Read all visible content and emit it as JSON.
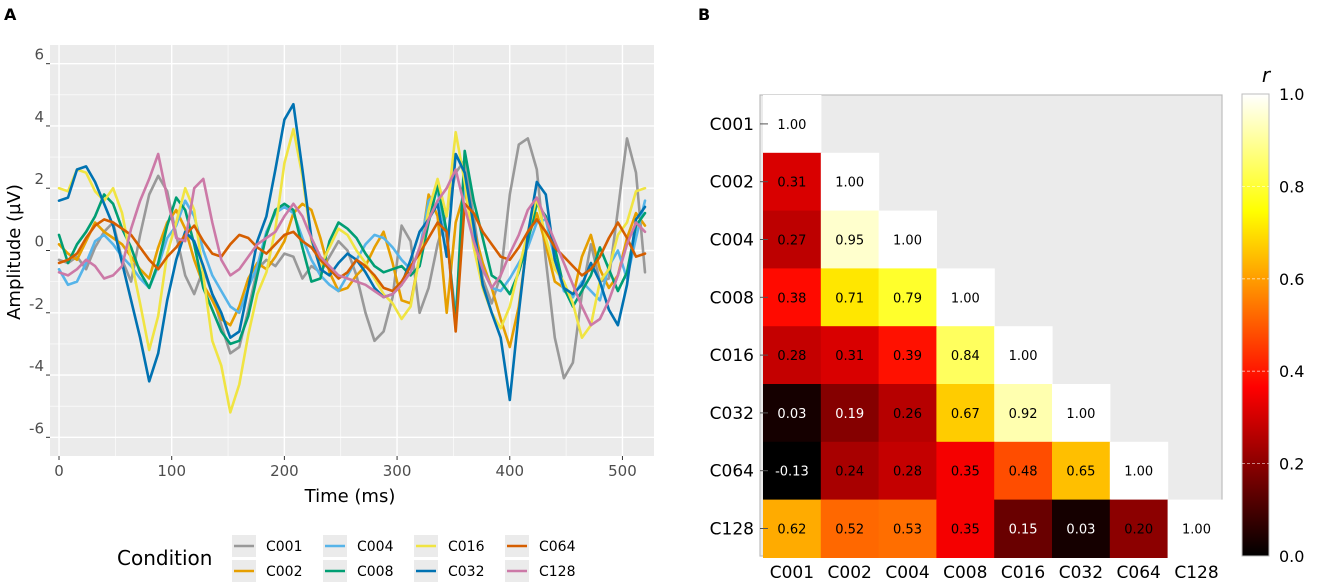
{
  "panels": {
    "a": "A",
    "b": "B"
  },
  "chart_data": [
    {
      "type": "line",
      "panel": "A",
      "title": "",
      "xlabel": "Time (ms)",
      "ylabel": "Amplitude (µV)",
      "xlim": [
        -8,
        528
      ],
      "ylim": [
        -6.6,
        6.6
      ],
      "xticks": [
        0,
        100,
        200,
        300,
        400,
        500
      ],
      "yticks": [
        -6,
        -4,
        -2,
        0,
        2,
        4,
        6
      ],
      "x": [
        0,
        8,
        16,
        24,
        32,
        40,
        48,
        56,
        64,
        72,
        80,
        88,
        96,
        104,
        112,
        120,
        128,
        136,
        144,
        152,
        160,
        168,
        176,
        184,
        192,
        200,
        208,
        216,
        224,
        232,
        240,
        248,
        256,
        264,
        272,
        280,
        288,
        296,
        304,
        312,
        320,
        328,
        336,
        344,
        352,
        360,
        368,
        376,
        384,
        392,
        400,
        408,
        416,
        424,
        432,
        440,
        448,
        456,
        464,
        472,
        480,
        488,
        496,
        504,
        512,
        520
      ],
      "legend_title": "Condition",
      "series": [
        {
          "name": "C001",
          "color": "#999999",
          "values": [
            -0.3,
            -0.4,
            -0.2,
            -0.6,
            0.1,
            0.6,
            0.9,
            -0.3,
            -1.0,
            0.5,
            1.8,
            2.4,
            1.9,
            0.5,
            -0.8,
            -1.4,
            -0.6,
            -1.4,
            -2.4,
            -3.3,
            -3.1,
            -1.9,
            -0.6,
            -0.3,
            -0.5,
            -0.1,
            -0.2,
            -0.9,
            -0.5,
            -0.7,
            -0.2,
            0.3,
            0.0,
            -0.8,
            -2.0,
            -2.9,
            -2.6,
            -1.5,
            0.8,
            0.3,
            -2.0,
            -1.2,
            0.2,
            1.2,
            2.5,
            2.9,
            1.1,
            -0.9,
            -1.7,
            -0.8,
            1.8,
            3.4,
            3.6,
            2.6,
            -0.3,
            -2.8,
            -4.1,
            -3.6,
            -1.4,
            0.2,
            -1.0,
            -0.9,
            1.3,
            3.6,
            2.5,
            -0.7
          ]
        },
        {
          "name": "C002",
          "color": "#E69F00",
          "values": [
            0.2,
            -0.1,
            -0.3,
            0.3,
            0.9,
            0.6,
            0.4,
            0.2,
            -0.2,
            -0.6,
            -0.9,
            0.1,
            0.9,
            1.3,
            0.7,
            -0.3,
            -1.1,
            -1.6,
            -2.2,
            -2.4,
            -1.8,
            -0.9,
            -0.4,
            -0.6,
            -0.2,
            0.3,
            1.2,
            1.5,
            1.3,
            0.4,
            -0.7,
            -1.3,
            -1.2,
            -0.8,
            -0.5,
            0.1,
            0.6,
            -0.4,
            -1.6,
            -1.7,
            -0.2,
            1.8,
            1.1,
            -2.0,
            0.9,
            1.9,
            0.7,
            -0.4,
            -1.2,
            -2.2,
            -3.1,
            -1.8,
            0.4,
            1.2,
            0.2,
            -1.0,
            -1.2,
            -1.5,
            -0.2,
            0.5,
            -0.6,
            -1.2,
            -0.8,
            0.4,
            1.2,
            0.8
          ]
        },
        {
          "name": "C004",
          "color": "#56B4E9",
          "values": [
            -0.6,
            -1.1,
            -1.0,
            -0.4,
            0.3,
            0.5,
            0.2,
            -0.2,
            -0.5,
            -0.9,
            -1.2,
            -0.5,
            0.4,
            0.8,
            1.6,
            1.1,
            0.0,
            -0.8,
            -1.3,
            -1.8,
            -2.0,
            -1.2,
            -0.5,
            0.6,
            1.2,
            1.4,
            1.2,
            0.4,
            -0.3,
            -0.8,
            -1.1,
            -1.3,
            -0.8,
            -0.3,
            0.2,
            0.5,
            0.4,
            0.1,
            -0.3,
            -0.6,
            0.0,
            1.6,
            1.9,
            0.4,
            -2.1,
            2.3,
            0.4,
            -0.6,
            -1.2,
            -1.3,
            -0.9,
            -0.4,
            0.1,
            0.9,
            1.0,
            -0.3,
            -1.3,
            -1.5,
            -1.0,
            -1.3,
            -1.6,
            -0.5,
            0.0,
            -0.9,
            0.4,
            1.6
          ]
        },
        {
          "name": "C008",
          "color": "#009E73",
          "values": [
            0.5,
            -0.4,
            0.2,
            0.6,
            1.1,
            1.8,
            1.5,
            0.7,
            0.1,
            -0.7,
            -1.2,
            -0.4,
            0.8,
            1.7,
            1.3,
            0.2,
            -1.2,
            -1.9,
            -2.6,
            -3.0,
            -2.9,
            -2.1,
            -0.8,
            0.5,
            1.3,
            1.5,
            1.3,
            0.1,
            -1.0,
            -0.9,
            0.3,
            0.9,
            0.7,
            0.4,
            -0.1,
            -0.5,
            -0.7,
            -0.6,
            -0.5,
            -0.8,
            -0.5,
            0.9,
            2.1,
            0.6,
            -2.4,
            3.2,
            1.6,
            0.4,
            -0.8,
            -1.0,
            -1.4,
            -0.7,
            0.3,
            1.5,
            1.1,
            0.1,
            -1.2,
            -1.8,
            -1.3,
            -0.8,
            0.1,
            -0.6,
            -1.3,
            -0.7,
            0.8,
            1.2
          ]
        },
        {
          "name": "C016",
          "color": "#F0E442",
          "values": [
            2.0,
            1.9,
            2.6,
            2.5,
            1.9,
            1.6,
            2.0,
            1.2,
            -0.3,
            -1.7,
            -3.2,
            -2.1,
            -0.1,
            0.9,
            2.0,
            1.3,
            -0.8,
            -2.9,
            -3.7,
            -5.2,
            -4.3,
            -2.7,
            -1.4,
            -0.7,
            0.7,
            2.8,
            3.9,
            2.4,
            0.3,
            -0.5,
            0.1,
            0.7,
            0.5,
            0.0,
            -0.4,
            -0.9,
            -1.4,
            -1.7,
            -2.2,
            -1.8,
            -0.2,
            1.3,
            2.3,
            1.1,
            3.8,
            2.2,
            0.1,
            -1.2,
            -2.0,
            -2.5,
            -1.8,
            -0.6,
            0.6,
            1.7,
            0.4,
            -0.6,
            -1.0,
            -1.7,
            -2.8,
            -2.4,
            -1.0,
            -0.6,
            0.5,
            0.9,
            1.9,
            2.0
          ]
        },
        {
          "name": "C032",
          "color": "#0072B2",
          "values": [
            1.6,
            1.7,
            2.6,
            2.7,
            2.2,
            1.5,
            0.8,
            -0.4,
            -1.6,
            -2.8,
            -4.2,
            -3.3,
            -1.6,
            -0.3,
            0.6,
            0.3,
            -0.5,
            -1.4,
            -2.0,
            -2.8,
            -2.6,
            -1.2,
            0.3,
            1.1,
            2.6,
            4.2,
            4.7,
            2.6,
            0.4,
            -0.6,
            -0.8,
            -0.4,
            -0.1,
            -0.3,
            -0.7,
            -1.2,
            -1.5,
            -1.4,
            -1.1,
            -0.3,
            0.6,
            1.0,
            1.5,
            -0.2,
            3.1,
            2.5,
            0.8,
            -1.1,
            -2.0,
            -2.8,
            -4.8,
            -2.0,
            0.5,
            2.2,
            1.8,
            -0.3,
            -1.2,
            -1.4,
            -1.1,
            -0.4,
            -1.0,
            -1.9,
            -2.4,
            -1.1,
            1.0,
            1.4
          ]
        },
        {
          "name": "C064",
          "color": "#D55E00",
          "values": [
            -0.4,
            -0.3,
            -0.1,
            0.4,
            0.8,
            1.0,
            0.9,
            0.7,
            0.5,
            0.1,
            -0.3,
            -0.6,
            -0.2,
            0.1,
            0.5,
            0.8,
            0.3,
            -0.1,
            -0.2,
            0.2,
            0.5,
            0.4,
            0.1,
            -0.1,
            0.2,
            0.5,
            0.6,
            0.3,
            0.1,
            -0.3,
            -0.6,
            -0.9,
            -0.7,
            -0.3,
            -0.5,
            -0.8,
            -1.2,
            -1.3,
            -1.0,
            -0.5,
            -0.1,
            0.4,
            0.9,
            0.6,
            -2.6,
            1.5,
            1.2,
            0.6,
            0.2,
            -0.2,
            -0.3,
            0.1,
            0.6,
            1.0,
            0.6,
            0.1,
            -0.2,
            -0.5,
            -0.8,
            -0.6,
            -0.2,
            0.4,
            0.9,
            0.4,
            -0.2,
            -0.1
          ]
        },
        {
          "name": "C128",
          "color": "#CC79A7",
          "values": [
            -0.7,
            -0.8,
            -0.6,
            -0.3,
            -0.5,
            -0.9,
            -0.8,
            -0.5,
            0.7,
            1.6,
            2.3,
            3.1,
            1.7,
            0.4,
            0.3,
            2.0,
            2.3,
            0.9,
            -0.3,
            -0.8,
            -0.6,
            -0.2,
            0.2,
            0.4,
            0.6,
            1.1,
            1.5,
            1.1,
            0.4,
            -0.2,
            -0.5,
            -0.8,
            -0.9,
            -1.0,
            -1.1,
            -1.3,
            -1.5,
            -1.4,
            -1.1,
            -0.7,
            0.1,
            1.0,
            1.6,
            2.0,
            2.6,
            1.4,
            0.3,
            -0.6,
            -1.2,
            -0.8,
            -0.1,
            0.5,
            1.3,
            1.7,
            1.0,
            0.3,
            -0.4,
            -1.1,
            -1.8,
            -2.4,
            -2.2,
            -1.6,
            -0.8,
            0.2,
            0.9,
            0.6
          ]
        }
      ]
    },
    {
      "type": "heatmap",
      "panel": "B",
      "title": "",
      "labels": [
        "C001",
        "C002",
        "C004",
        "C008",
        "C016",
        "C032",
        "C064",
        "C128"
      ],
      "matrix": [
        [
          1.0
        ],
        [
          0.31,
          1.0
        ],
        [
          0.27,
          0.95,
          1.0
        ],
        [
          0.38,
          0.71,
          0.79,
          1.0
        ],
        [
          0.28,
          0.31,
          0.39,
          0.84,
          1.0
        ],
        [
          0.03,
          0.19,
          0.26,
          0.67,
          0.92,
          1.0
        ],
        [
          -0.13,
          0.24,
          0.28,
          0.35,
          0.48,
          0.65,
          1.0
        ],
        [
          0.62,
          0.52,
          0.53,
          0.35,
          0.15,
          0.03,
          0.2,
          1.0
        ]
      ],
      "matrix_labels": [
        [
          "1.00"
        ],
        [
          "0.31",
          "1.00"
        ],
        [
          "0.27",
          "0.95",
          "1.00"
        ],
        [
          "0.38",
          "0.71",
          "0.79",
          "1.00"
        ],
        [
          "0.28",
          "0.31",
          "0.39",
          "0.84",
          "1.00"
        ],
        [
          "0.03",
          "0.19",
          "0.26",
          "0.67",
          "0.92",
          "1.00"
        ],
        [
          "-0.13",
          "0.24",
          "0.28",
          "0.35",
          "0.48",
          "0.65",
          "1.00"
        ],
        [
          "0.62",
          "0.52",
          "0.53",
          "0.35",
          "0.15",
          "0.03",
          "0.20",
          "1.00"
        ]
      ],
      "colormap": "hot",
      "colorbar": {
        "label": "r",
        "range": [
          0.0,
          1.0
        ],
        "ticks": [
          "0.0",
          "0.2",
          "0.4",
          "0.6",
          "0.8",
          "1.0"
        ]
      }
    }
  ]
}
